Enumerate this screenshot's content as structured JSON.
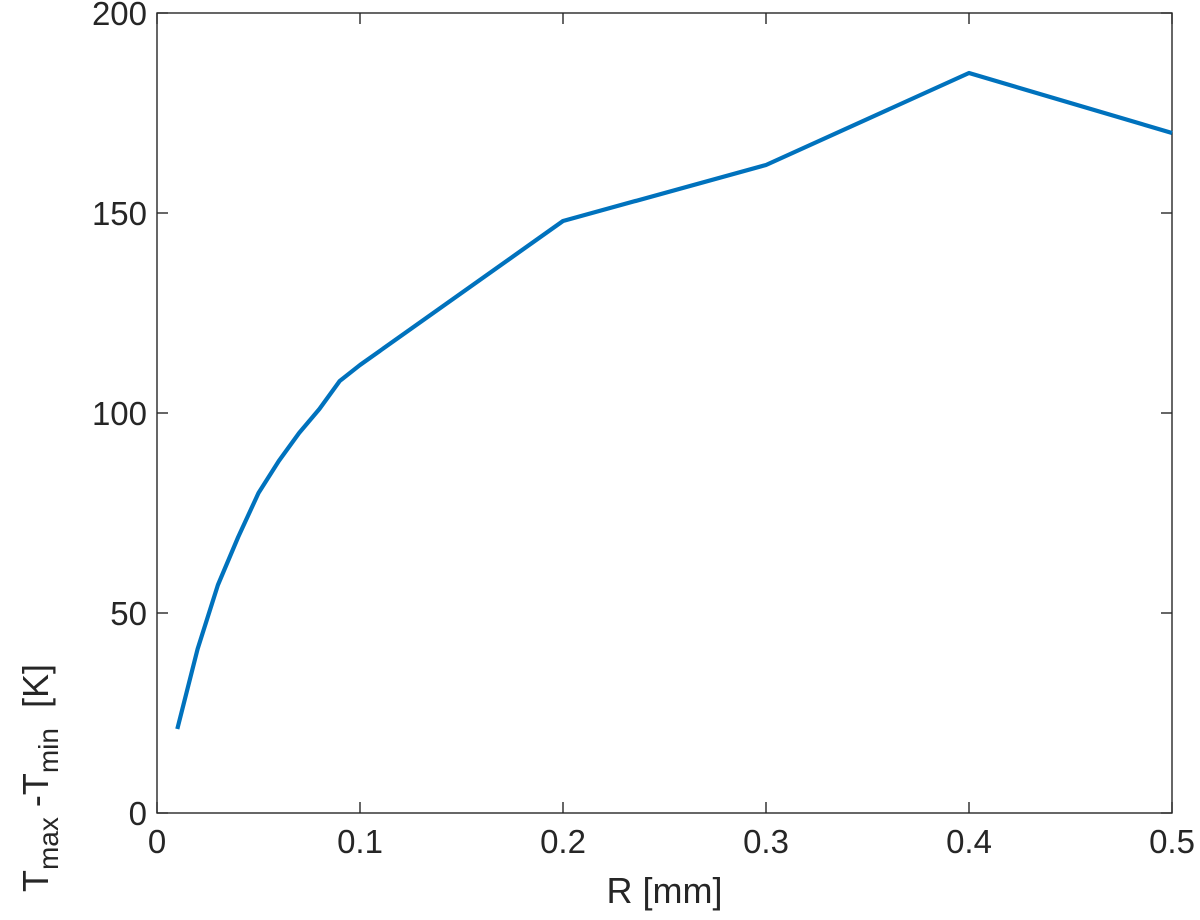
{
  "chart_data": {
    "type": "line",
    "title": "",
    "xlabel": "R [mm]",
    "ylabel": {
      "base1": "T",
      "sub1": "max",
      "mid": " -T",
      "sub2": "min",
      "unit": "  [K]"
    },
    "xlim": [
      0,
      0.5
    ],
    "ylim": [
      0,
      200
    ],
    "xticks": [
      0,
      0.1,
      0.2,
      0.3,
      0.4,
      0.5
    ],
    "xtick_labels": [
      "0",
      "0.1",
      "0.2",
      "0.3",
      "0.4",
      "0.5"
    ],
    "yticks": [
      0,
      50,
      100,
      150,
      200
    ],
    "ytick_labels": [
      "0",
      "50",
      "100",
      "150",
      "200"
    ],
    "grid": false,
    "box": true,
    "series": [
      {
        "color": "#0072bd",
        "x": [
          0.01,
          0.02,
          0.03,
          0.04,
          0.05,
          0.06,
          0.07,
          0.08,
          0.09,
          0.1,
          0.2,
          0.3,
          0.4,
          0.5
        ],
        "y": [
          21,
          41,
          57,
          69,
          80,
          88,
          95,
          101,
          108,
          112,
          148,
          162,
          185,
          170
        ]
      }
    ]
  }
}
